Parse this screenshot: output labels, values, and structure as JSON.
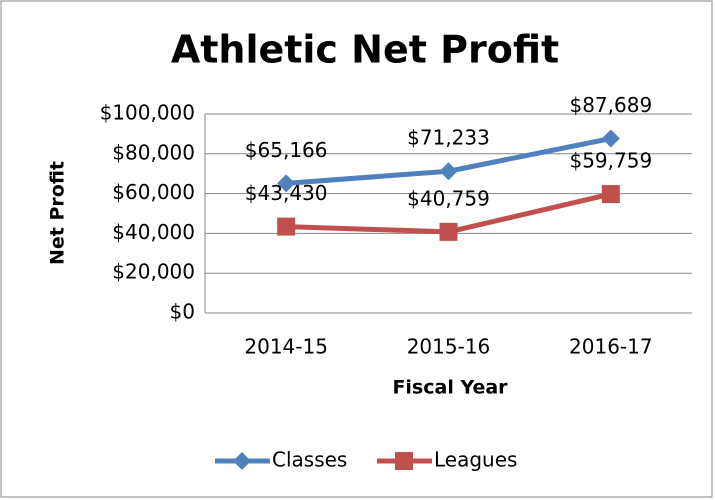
{
  "chart_data": {
    "type": "line",
    "title": "Athletic Net Profit",
    "x_label": "Fiscal Year",
    "y_label": "Net Profit",
    "categories": [
      "2014-15",
      "2015-16",
      "2016-17"
    ],
    "series": [
      {
        "name": "Classes",
        "color": "#4f81bd",
        "marker": "diamond",
        "values": [
          65166,
          71233,
          87689
        ],
        "value_labels": [
          "$65,166",
          "$71,233",
          "$87,689"
        ]
      },
      {
        "name": "Leagues",
        "color": "#c0504d",
        "marker": "square",
        "values": [
          43430,
          40759,
          59759
        ],
        "value_labels": [
          "$43,430",
          "$40,759",
          "$59,759"
        ]
      }
    ],
    "ylim": [
      0,
      100000
    ],
    "yticks": [
      {
        "value": 0,
        "label": "$0"
      },
      {
        "value": 20000,
        "label": "$20,000"
      },
      {
        "value": 40000,
        "label": "$40,000"
      },
      {
        "value": 60000,
        "label": "$60,000"
      },
      {
        "value": 80000,
        "label": "$80,000"
      },
      {
        "value": 100000,
        "label": "$100,000"
      }
    ],
    "grid": true,
    "legend": "bottom"
  }
}
